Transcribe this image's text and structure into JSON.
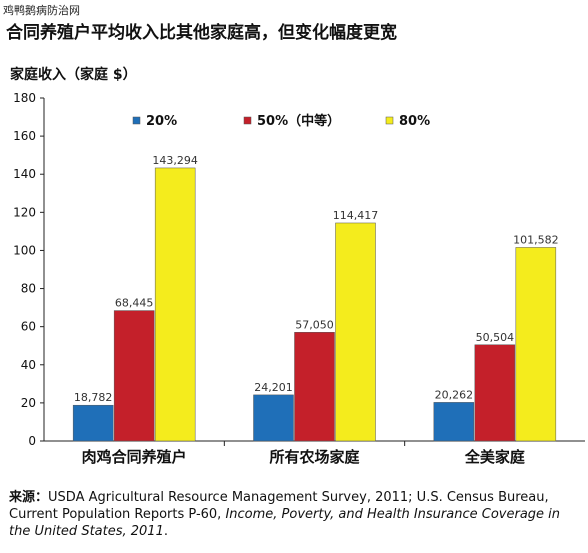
{
  "watermark": "鸡鸭鹅病防治网",
  "chart_data": {
    "type": "bar",
    "title": "合同养殖户平均收入比其他家庭高，但变化幅度更宽",
    "ylabel": "家庭收入（家庭 $）",
    "xlabel": "",
    "ylim": [
      0,
      180
    ],
    "yticks": [
      0,
      20,
      40,
      60,
      80,
      100,
      120,
      140,
      160,
      180
    ],
    "categories": [
      "肉鸡合同养殖户",
      "所有农场家庭",
      "全美家庭"
    ],
    "unit_scale": "thousand",
    "series": [
      {
        "name": "20%",
        "color": "#1f6fb8",
        "values": [
          18.782,
          24.201,
          20.262
        ],
        "labels": [
          "18,782",
          "24,201",
          "20,262"
        ]
      },
      {
        "name": "50%（中等）",
        "color": "#c4202a",
        "values": [
          68.445,
          57.05,
          50.504
        ],
        "labels": [
          "68,445",
          "57,050",
          "50,504"
        ]
      },
      {
        "name": "80%",
        "color": "#f4ec1d",
        "values": [
          143.294,
          114.417,
          101.582
        ],
        "labels": [
          "143,294",
          "114,417",
          "101,582"
        ]
      }
    ],
    "legend_position": "top",
    "grid": false
  },
  "source": {
    "label": "来源：",
    "text1": "USDA Agricultural Resource Management Survey, 2011; U.S. Census Bureau, Current Population Reports P-60, ",
    "italic": "Income, Poverty, and Health Insurance Coverage in the United States, 2011",
    "text2": "."
  }
}
